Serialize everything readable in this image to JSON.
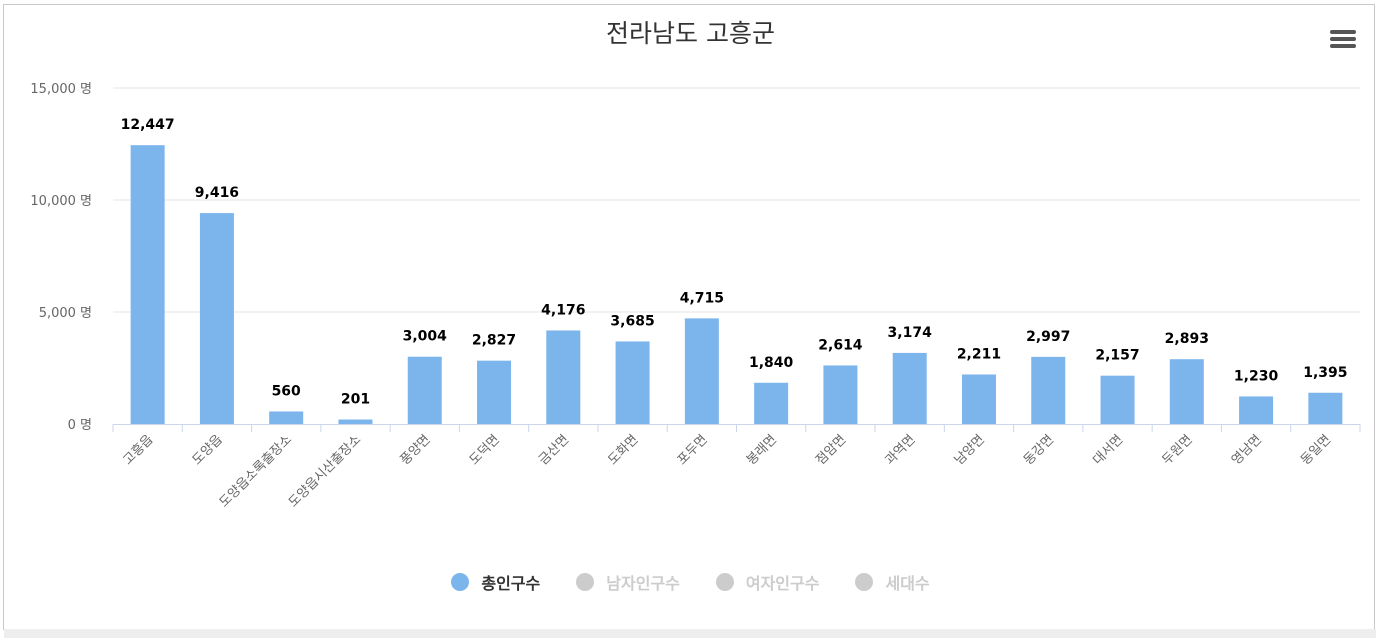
{
  "menu": {
    "icon": "hamburger-menu-icon"
  },
  "chart_data": {
    "type": "bar",
    "title": "전라남도 고흥군",
    "categories": [
      "고흥읍",
      "도양읍",
      "도양읍소록출장소",
      "도양읍시산출장소",
      "풍양면",
      "도덕면",
      "금산면",
      "도화면",
      "포두면",
      "봉래면",
      "점암면",
      "과역면",
      "남양면",
      "동강면",
      "대서면",
      "두원면",
      "영남면",
      "동일면"
    ],
    "series": [
      {
        "name": "총인구수",
        "values": [
          12447,
          9416,
          560,
          201,
          3004,
          2827,
          4176,
          3685,
          4715,
          1840,
          2614,
          3174,
          2211,
          2997,
          2157,
          2893,
          1230,
          1395
        ]
      }
    ],
    "data_labels": [
      "12,447",
      "9,416",
      "560",
      "201",
      "3,004",
      "2,827",
      "4,176",
      "3,685",
      "4,715",
      "1,840",
      "2,614",
      "3,174",
      "2,211",
      "2,997",
      "2,157",
      "2,893",
      "1,230",
      "1,395"
    ],
    "y_ticks": [
      0,
      5000,
      10000,
      15000
    ],
    "y_tick_labels": [
      "0 명",
      "5,000 명",
      "10,000 명",
      "15,000 명"
    ],
    "ylim": [
      0,
      15000
    ],
    "xlabel": "",
    "ylabel": "",
    "grid": true,
    "legend_position": "bottom",
    "legend": [
      {
        "label": "총인구수",
        "active": true,
        "color": "#7cb5ec"
      },
      {
        "label": "남자인구수",
        "active": false,
        "color": "#cccccc"
      },
      {
        "label": "여자인구수",
        "active": false,
        "color": "#cccccc"
      },
      {
        "label": "세대수",
        "active": false,
        "color": "#cccccc"
      }
    ],
    "bar_color": "#7cb5ec"
  }
}
